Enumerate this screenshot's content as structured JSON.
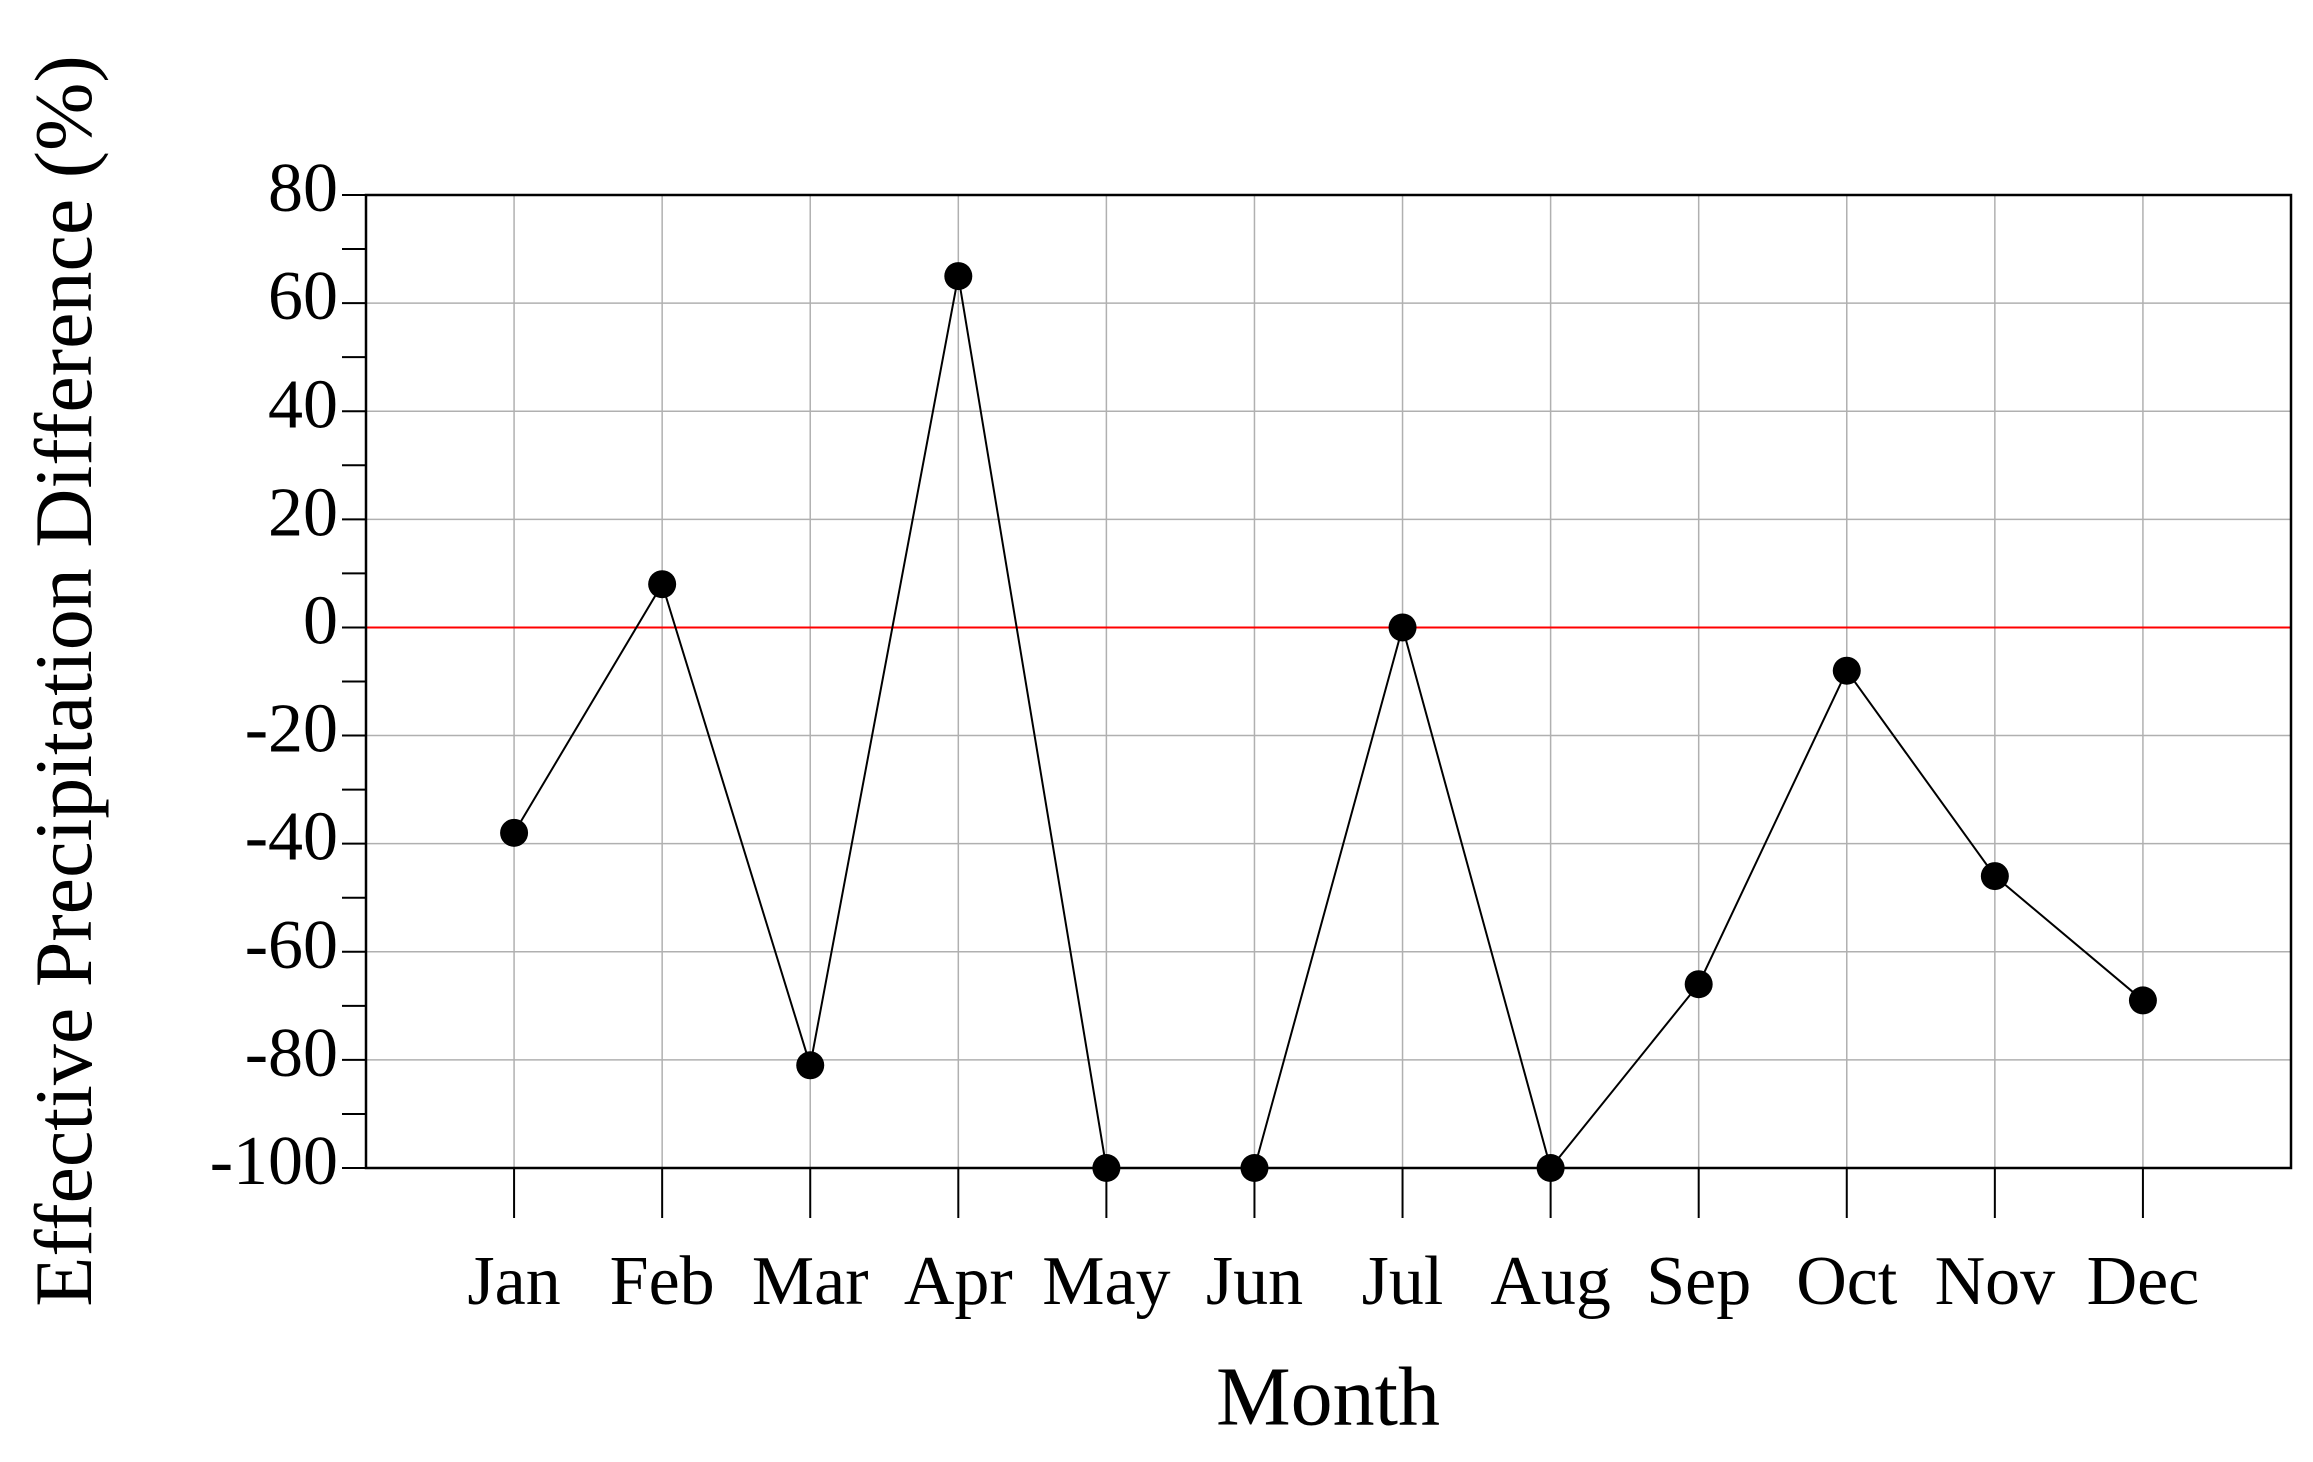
{
  "chart_data": {
    "type": "line",
    "x_label": "Month",
    "y_label": "Effective Precipitation Difference (%)",
    "categories": [
      "Jan",
      "Feb",
      "Mar",
      "Apr",
      "May",
      "Jun",
      "Jul",
      "Aug",
      "Sep",
      "Oct",
      "Nov",
      "Dec"
    ],
    "values": [
      -38,
      8,
      -81,
      65,
      -100,
      -100,
      0,
      -100,
      -66,
      -8,
      -46,
      -69
    ],
    "color": "#000000",
    "ylim": [
      -100,
      80
    ],
    "yticks": [
      -100,
      -80,
      -60,
      -40,
      -20,
      0,
      20,
      40,
      60,
      80
    ],
    "grid": true,
    "reference_line": {
      "value": 0,
      "color": "#ff0000"
    }
  }
}
